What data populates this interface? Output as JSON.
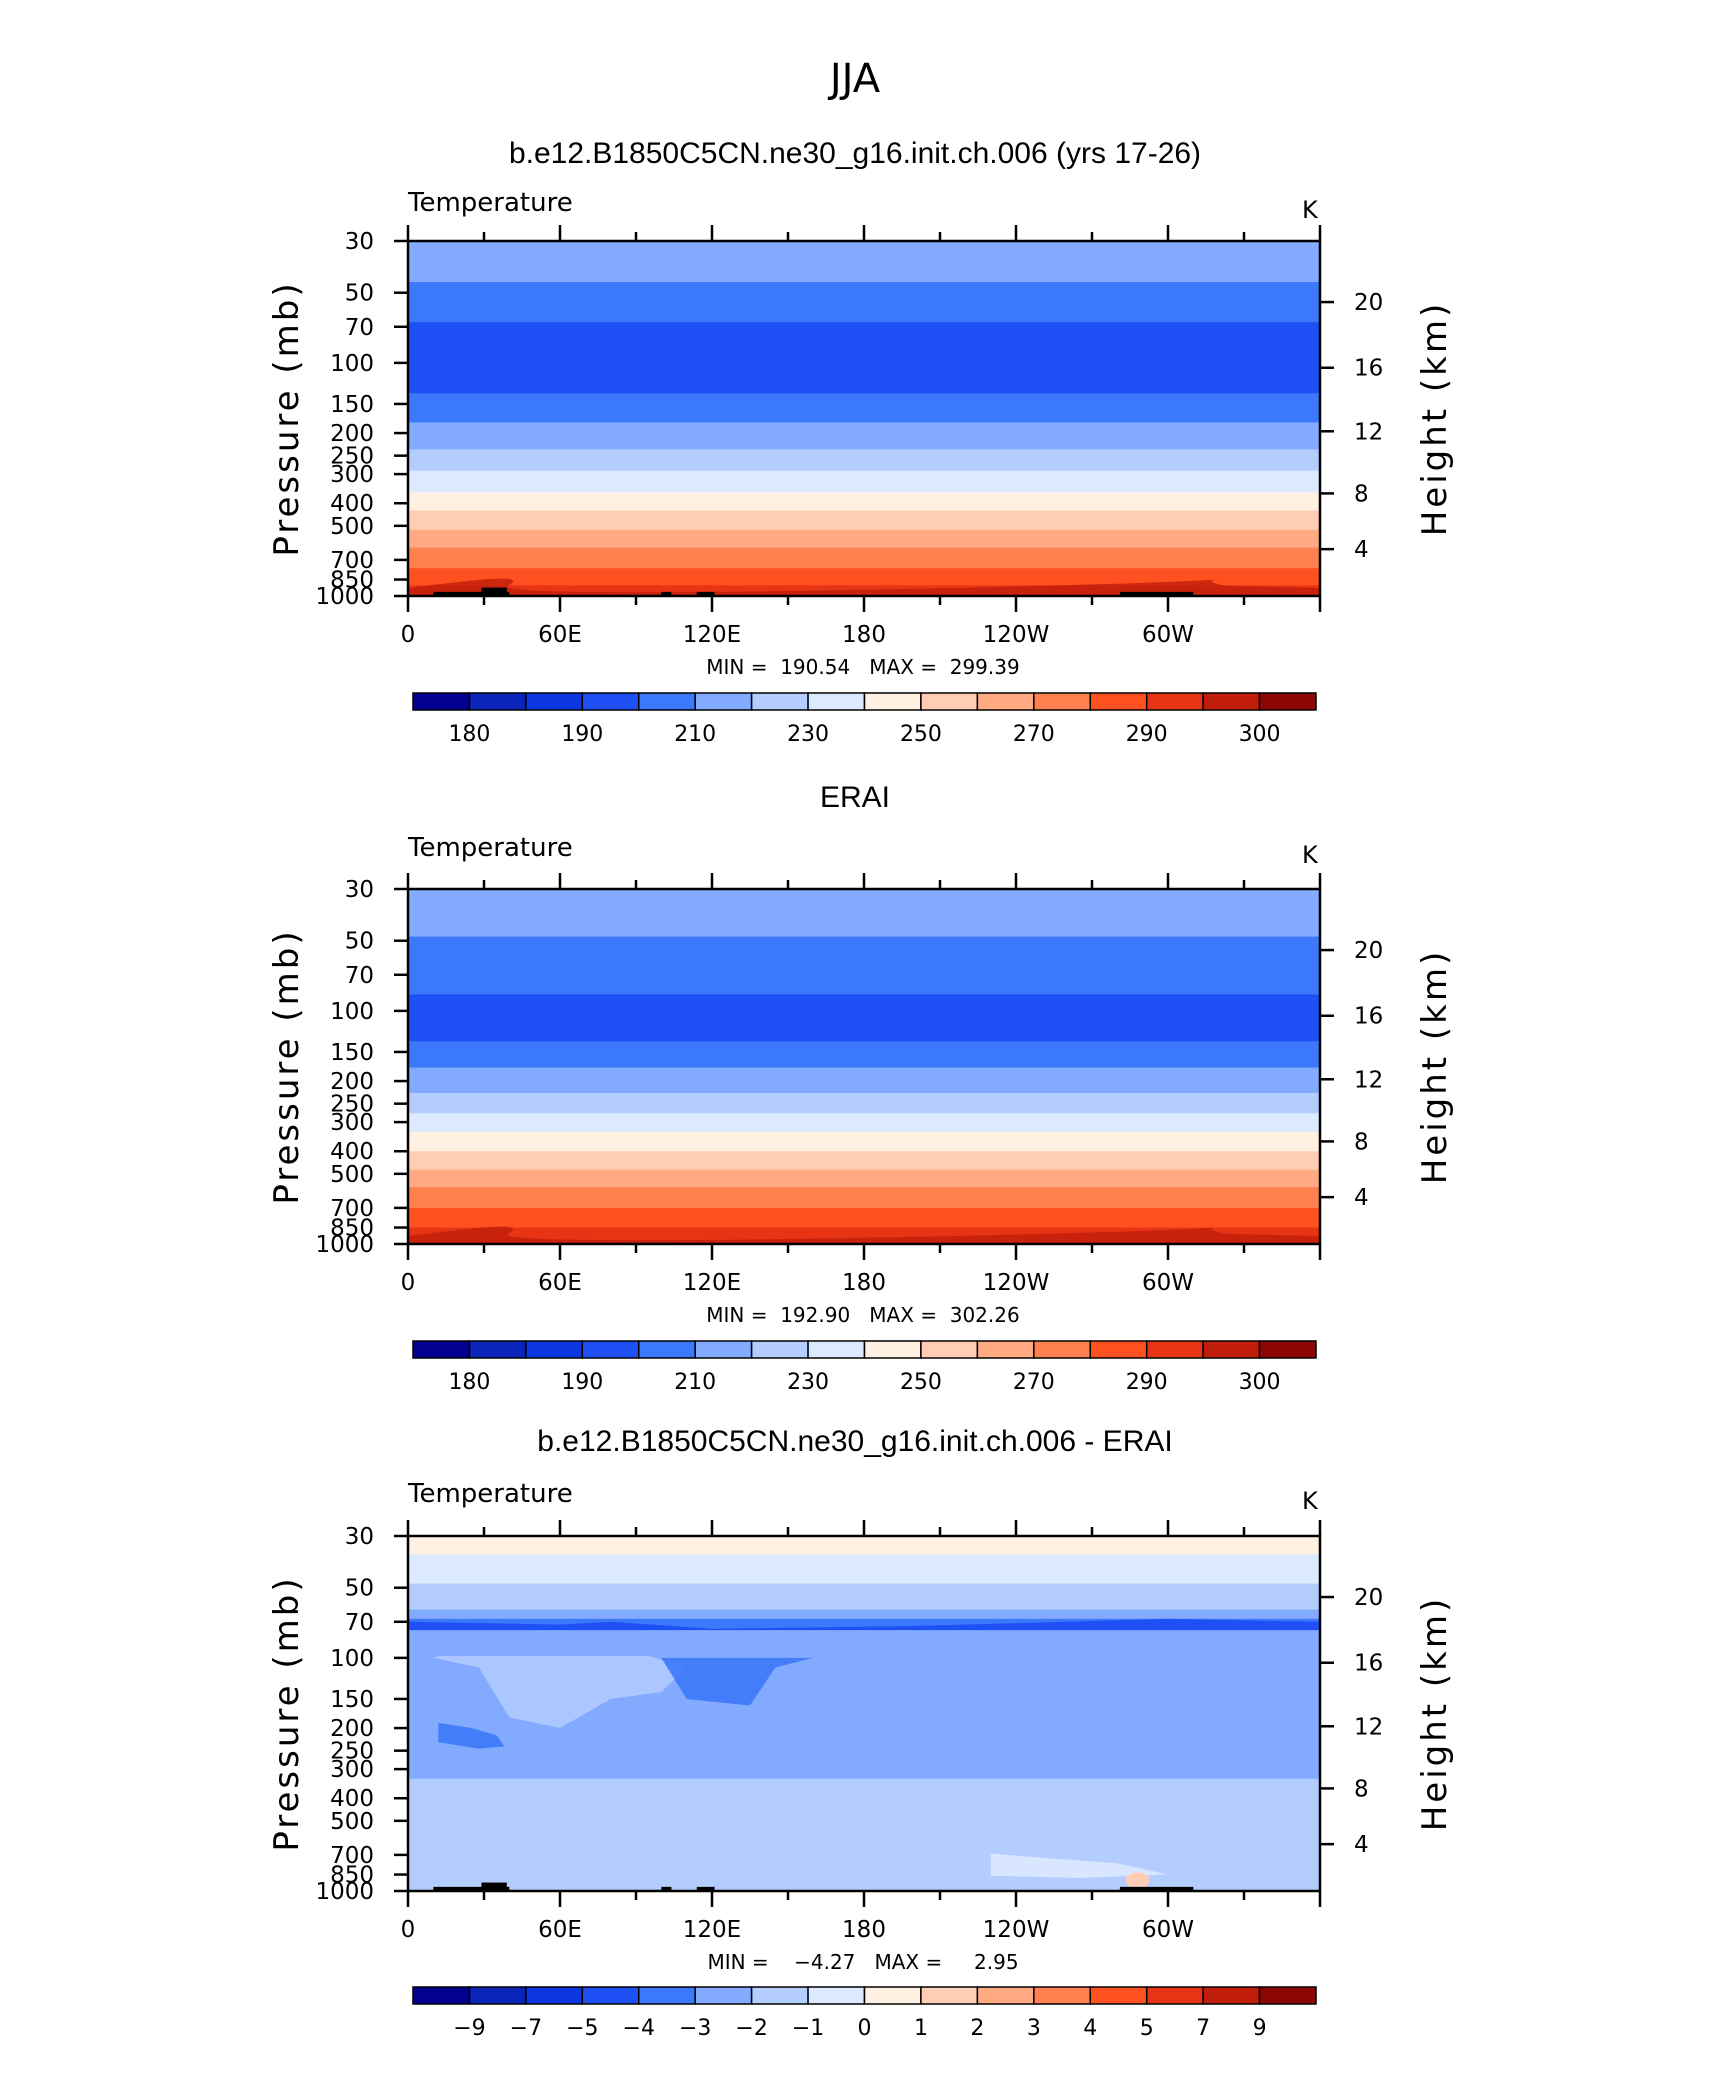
{
  "figure_title": "JJA",
  "chart_data": [
    {
      "type": "heatmap",
      "title": "b.e12.B1850C5CN.ne30_g16.init.ch.006 (yrs 17-26)",
      "variable_label": "Temperature",
      "units_label": "K",
      "ylabel": "Pressure (mb)",
      "ylabel_right": "Height (km)",
      "x_ticks": [
        "0",
        "60E",
        "120E",
        "180",
        "120W",
        "60W"
      ],
      "x_values": [
        0,
        60,
        120,
        180,
        240,
        300
      ],
      "xlim": [
        0,
        360
      ],
      "y_ticks": [
        "30",
        "50",
        "70",
        "100",
        "150",
        "200",
        "250",
        "300",
        "400",
        "500",
        "700",
        "850",
        "1000"
      ],
      "y_values": [
        30,
        50,
        70,
        100,
        150,
        200,
        250,
        300,
        400,
        500,
        700,
        850,
        1000
      ],
      "ylim": [
        1000,
        30
      ],
      "y_scale": "log",
      "right_ticks": [
        "20",
        "16",
        "12",
        "8",
        "4"
      ],
      "min_max_text": "MIN =  190.54   MAX =  299.39",
      "colorbar_labels": [
        "180",
        "190",
        "210",
        "230",
        "250",
        "270",
        "290",
        "300"
      ],
      "colorbar_colors": [
        "#03008f",
        "#0a24b8",
        "#0c36e0",
        "#1e50f5",
        "#3c78fa",
        "#82aaff",
        "#b4cdff",
        "#dceaff",
        "#fff0e1",
        "#ffcdb4",
        "#ffaa82",
        "#ff8150",
        "#ff5020",
        "#e63414",
        "#c01e0a",
        "#8c0606"
      ],
      "bands": [
        {
          "p_top": 30,
          "p_bottom": 45,
          "level": 5
        },
        {
          "p_top": 45,
          "p_bottom": 67,
          "level": 4
        },
        {
          "p_top": 67,
          "p_bottom": 135,
          "level": 3
        },
        {
          "p_top": 135,
          "p_bottom": 180,
          "level": 4
        },
        {
          "p_top": 180,
          "p_bottom": 235,
          "level": 5
        },
        {
          "p_top": 235,
          "p_bottom": 290,
          "level": 6
        },
        {
          "p_top": 290,
          "p_bottom": 360,
          "level": 7
        },
        {
          "p_top": 360,
          "p_bottom": 430,
          "level": 8
        },
        {
          "p_top": 430,
          "p_bottom": 520,
          "level": 9
        },
        {
          "p_top": 520,
          "p_bottom": 620,
          "level": 10
        },
        {
          "p_top": 620,
          "p_bottom": 760,
          "level": 11
        },
        {
          "p_top": 760,
          "p_bottom": 900,
          "level": 12
        },
        {
          "p_top": 900,
          "p_bottom": 1000,
          "level": 13
        }
      ],
      "topography": true
    },
    {
      "type": "heatmap",
      "title": "ERAI",
      "variable_label": "Temperature",
      "units_label": "K",
      "ylabel": "Pressure (mb)",
      "ylabel_right": "Height (km)",
      "x_ticks": [
        "0",
        "60E",
        "120E",
        "180",
        "120W",
        "60W"
      ],
      "x_values": [
        0,
        60,
        120,
        180,
        240,
        300
      ],
      "xlim": [
        0,
        360
      ],
      "y_ticks": [
        "30",
        "50",
        "70",
        "100",
        "150",
        "200",
        "250",
        "300",
        "400",
        "500",
        "700",
        "850",
        "1000"
      ],
      "y_values": [
        30,
        50,
        70,
        100,
        150,
        200,
        250,
        300,
        400,
        500,
        700,
        850,
        1000
      ],
      "ylim": [
        1000,
        30
      ],
      "y_scale": "log",
      "right_ticks": [
        "20",
        "16",
        "12",
        "8",
        "4"
      ],
      "min_max_text": "MIN =  192.90   MAX =  302.26",
      "colorbar_labels": [
        "180",
        "190",
        "210",
        "230",
        "250",
        "270",
        "290",
        "300"
      ],
      "colorbar_colors": [
        "#03008f",
        "#0a24b8",
        "#0c36e0",
        "#1e50f5",
        "#3c78fa",
        "#82aaff",
        "#b4cdff",
        "#dceaff",
        "#fff0e1",
        "#ffcdb4",
        "#ffaa82",
        "#ff8150",
        "#ff5020",
        "#e63414",
        "#c01e0a",
        "#8c0606"
      ],
      "bands": [
        {
          "p_top": 30,
          "p_bottom": 48,
          "level": 5
        },
        {
          "p_top": 48,
          "p_bottom": 85,
          "level": 4
        },
        {
          "p_top": 85,
          "p_bottom": 135,
          "level": 3
        },
        {
          "p_top": 135,
          "p_bottom": 175,
          "level": 4
        },
        {
          "p_top": 175,
          "p_bottom": 225,
          "level": 5
        },
        {
          "p_top": 225,
          "p_bottom": 275,
          "level": 6
        },
        {
          "p_top": 275,
          "p_bottom": 330,
          "level": 7
        },
        {
          "p_top": 330,
          "p_bottom": 400,
          "level": 8
        },
        {
          "p_top": 400,
          "p_bottom": 480,
          "level": 9
        },
        {
          "p_top": 480,
          "p_bottom": 570,
          "level": 10
        },
        {
          "p_top": 570,
          "p_bottom": 700,
          "level": 11
        },
        {
          "p_top": 700,
          "p_bottom": 850,
          "level": 12
        },
        {
          "p_top": 850,
          "p_bottom": 1000,
          "level": 13
        }
      ],
      "topography": false
    },
    {
      "type": "heatmap",
      "title": "b.e12.B1850C5CN.ne30_g16.init.ch.006 - ERAI",
      "variable_label": "Temperature",
      "units_label": "K",
      "ylabel": "Pressure (mb)",
      "ylabel_right": "Height (km)",
      "x_ticks": [
        "0",
        "60E",
        "120E",
        "180",
        "120W",
        "60W"
      ],
      "x_values": [
        0,
        60,
        120,
        180,
        240,
        300
      ],
      "xlim": [
        0,
        360
      ],
      "y_ticks": [
        "30",
        "50",
        "70",
        "100",
        "150",
        "200",
        "250",
        "300",
        "400",
        "500",
        "700",
        "850",
        "1000"
      ],
      "y_values": [
        30,
        50,
        70,
        100,
        150,
        200,
        250,
        300,
        400,
        500,
        700,
        850,
        1000
      ],
      "ylim": [
        1000,
        30
      ],
      "y_scale": "log",
      "right_ticks": [
        "20",
        "16",
        "12",
        "8",
        "4"
      ],
      "min_max_text": "MIN =    −4.27   MAX =     2.95",
      "colorbar_labels": [
        "−9",
        "−7",
        "−5",
        "−4",
        "−3",
        "−2",
        "−1",
        "0",
        "1",
        "2",
        "3",
        "4",
        "5",
        "7",
        "9"
      ],
      "colorbar_colors": [
        "#03008f",
        "#0a24b8",
        "#0c36e0",
        "#1e50f5",
        "#3c78fa",
        "#82aaff",
        "#b4cdff",
        "#dceaff",
        "#fff0e1",
        "#ffcdb4",
        "#ffaa82",
        "#ff8150",
        "#ff5020",
        "#e63414",
        "#c01e0a",
        "#8c0606"
      ],
      "bands": [
        {
          "p_top": 30,
          "p_bottom": 36,
          "level": 8
        },
        {
          "p_top": 36,
          "p_bottom": 48,
          "level": 7
        },
        {
          "p_top": 48,
          "p_bottom": 62,
          "level": 6
        },
        {
          "p_top": 62,
          "p_bottom": 68,
          "level": 5
        },
        {
          "p_top": 68,
          "p_bottom": 75,
          "level": 4
        },
        {
          "p_top": 75,
          "p_bottom": 88,
          "level": 5
        },
        {
          "p_top": 88,
          "p_bottom": 330,
          "level": 5
        },
        {
          "p_top": 330,
          "p_bottom": 1000,
          "level": 6
        }
      ],
      "topography": true
    }
  ]
}
